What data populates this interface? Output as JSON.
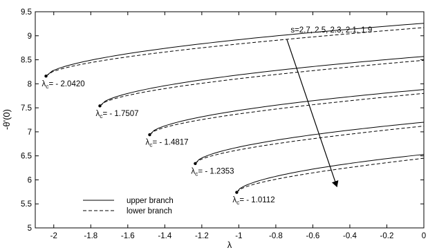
{
  "chart_data": {
    "type": "line",
    "title": "",
    "xlabel": "λ",
    "ylabel": "-θ'(0)",
    "xlim": [
      -2.1,
      0
    ],
    "ylim": [
      5,
      9.5
    ],
    "xticks": [
      -2,
      -1.8,
      -1.6,
      -1.4,
      -1.2,
      -1,
      -0.8,
      -0.6,
      -0.4,
      -0.2,
      0
    ],
    "yticks": [
      5,
      5.5,
      6,
      6.5,
      7,
      7.5,
      8,
      8.5,
      9,
      9.5
    ],
    "xtick_labels": [
      "-2",
      "-1.8",
      "-1.6",
      "-1.4",
      "-1.2",
      "-1",
      "-0.8",
      "-0.6",
      "-0.4",
      "-0.2",
      "0"
    ],
    "ytick_labels": [
      "5",
      "5.5",
      "6",
      "6.5",
      "7",
      "7.5",
      "8",
      "8.5",
      "9",
      "9.5"
    ],
    "grid": false,
    "legend_position": "bottom-left",
    "legend": [
      {
        "label": "upper branch",
        "style": "solid"
      },
      {
        "label": "lower branch",
        "style": "dashed"
      }
    ],
    "arrow_annotation": {
      "text": "s=2.7, 2.5, 2.3, 2.1, 1.9",
      "text_at": [
        -0.72,
        9.07
      ],
      "from": [
        -0.74,
        8.92
      ],
      "to": [
        -0.47,
        5.86
      ]
    },
    "series": [
      {
        "s": 2.7,
        "lambda_c": -2.042,
        "theta_c": 8.16,
        "upper_end": 9.26,
        "lower_end": 9.17,
        "label_prefix": "λ",
        "label_sub": "c",
        "label_value": "= - 2.0420",
        "label_at": [
          -2.042,
          7.95
        ]
      },
      {
        "s": 2.5,
        "lambda_c": -1.7507,
        "theta_c": 7.54,
        "upper_end": 8.57,
        "lower_end": 8.49,
        "label_prefix": "λ",
        "label_sub": "c",
        "label_value": "= - 1.7507",
        "label_at": [
          -1.7507,
          7.33
        ]
      },
      {
        "s": 2.3,
        "lambda_c": -1.4817,
        "theta_c": 6.94,
        "upper_end": 7.88,
        "lower_end": 7.8,
        "label_prefix": "λ",
        "label_sub": "c",
        "label_value": "= - 1.4817",
        "label_at": [
          -1.4817,
          6.73
        ]
      },
      {
        "s": 2.1,
        "lambda_c": -1.2353,
        "theta_c": 6.34,
        "upper_end": 7.2,
        "lower_end": 7.12,
        "label_prefix": "λ",
        "label_sub": "c",
        "label_value": "= - 1.2353",
        "label_at": [
          -1.2353,
          6.13
        ]
      },
      {
        "s": 1.9,
        "lambda_c": -1.0112,
        "theta_c": 5.74,
        "upper_end": 6.53,
        "lower_end": 6.45,
        "label_prefix": "λ",
        "label_sub": "c",
        "label_value": "= - 1.0112",
        "label_at": [
          -1.0112,
          5.53
        ]
      }
    ]
  }
}
